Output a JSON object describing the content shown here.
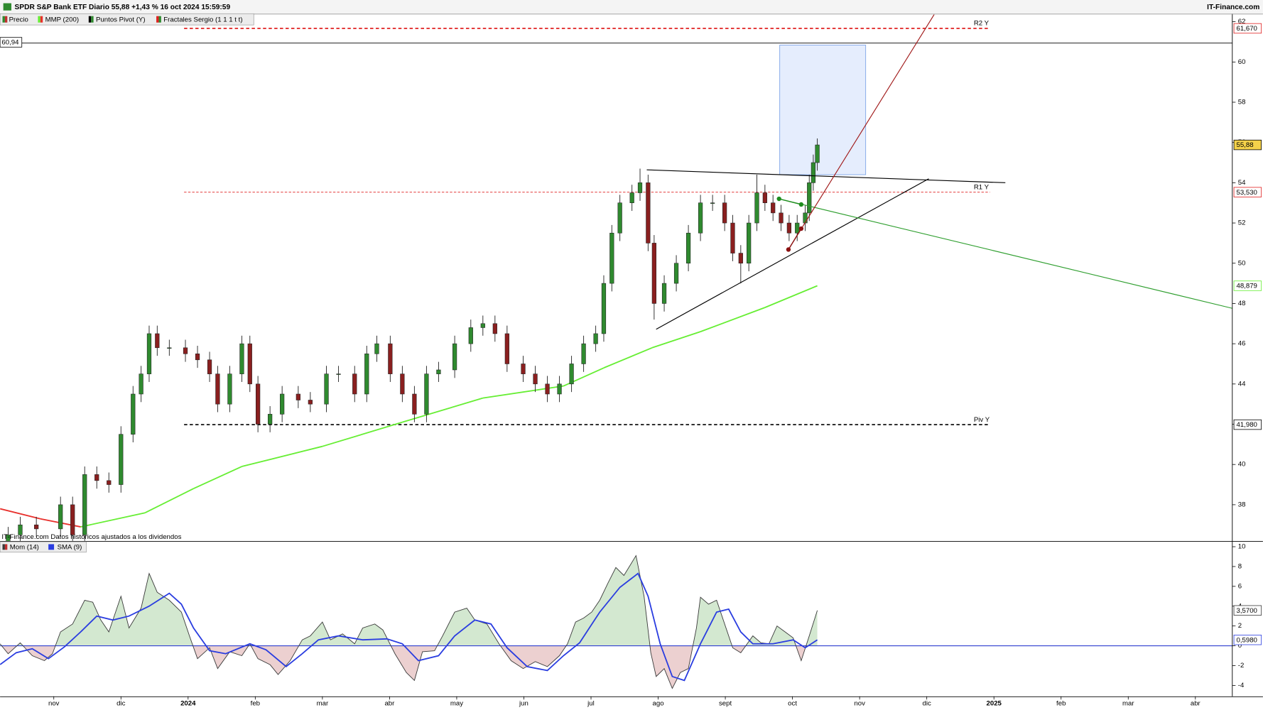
{
  "header": {
    "title": "SPDR S&P Bank ETF Diario 55,88 +1,43 % 16 oct 2024 15:59:59",
    "brand": "IT-Finance.com"
  },
  "chart_data": [
    {
      "type": "candlestick",
      "name": "Precio",
      "up_color": "#2f8a2f",
      "down_color": "#8a1f1f",
      "x": [
        -0.68,
        -0.5,
        -0.26,
        0.1,
        0.28,
        0.46,
        0.64,
        0.82,
        1.0,
        1.18,
        1.3,
        1.42,
        1.54,
        1.72,
        1.96,
        2.14,
        2.32,
        2.44,
        2.62,
        2.8,
        2.92,
        3.04,
        3.22,
        3.4,
        3.64,
        3.82,
        4.06,
        4.24,
        4.48,
        4.66,
        4.81,
        5.01,
        5.19,
        5.37,
        5.55,
        5.73,
        5.97,
        6.21,
        6.39,
        6.57,
        6.75,
        6.99,
        7.17,
        7.35,
        7.53,
        7.71,
        7.89,
        8.07,
        8.19,
        8.31,
        8.43,
        8.61,
        8.73,
        8.85,
        8.94,
        9.09,
        9.27,
        9.45,
        9.63,
        9.81,
        9.99,
        10.11,
        10.23,
        10.35,
        10.47,
        10.59,
        10.71,
        10.83,
        10.95,
        11.07,
        11.19,
        11.25,
        11.31,
        11.37
      ],
      "open": [
        36,
        36.5,
        37,
        36.8,
        38,
        36.5,
        39.5,
        39.2,
        39,
        41.5,
        43.5,
        44.5,
        46.5,
        45.8,
        45.8,
        45.5,
        45.2,
        44.5,
        43,
        44.5,
        46,
        44,
        42,
        42.5,
        43.5,
        43.2,
        43,
        44.5,
        44.5,
        43.5,
        45.5,
        46,
        44.5,
        43.5,
        42.5,
        44.5,
        44.7,
        46,
        46.8,
        47,
        46.5,
        45,
        44.5,
        44,
        43.5,
        44,
        45,
        46,
        46.5,
        49,
        51.5,
        53,
        53.5,
        54,
        51,
        48,
        49,
        50,
        51.5,
        53,
        53,
        52,
        50.5,
        50,
        52,
        53.5,
        53,
        52.5,
        52,
        51.5,
        52,
        52.5,
        54,
        55
      ],
      "high": [
        36.9,
        37.4,
        37.4,
        38.4,
        38.4,
        39.9,
        39.9,
        39.6,
        41.9,
        43.9,
        44.9,
        46.9,
        46.9,
        46.2,
        46.2,
        45.9,
        45.6,
        44.9,
        44.9,
        46.4,
        46.4,
        44.4,
        42.9,
        43.9,
        43.9,
        43.6,
        44.9,
        44.9,
        44.9,
        45.9,
        46.4,
        46.4,
        44.9,
        43.9,
        44.9,
        45.1,
        46.4,
        47.2,
        47.4,
        47.4,
        46.9,
        45.4,
        44.9,
        44.4,
        44.4,
        45.4,
        46.4,
        46.9,
        49.4,
        51.9,
        53.4,
        53.9,
        54.7,
        54.4,
        51.4,
        49.4,
        50.4,
        51.9,
        53.4,
        53.4,
        53.4,
        52.4,
        50.9,
        52.4,
        54.4,
        53.9,
        53.4,
        52.9,
        52.4,
        52.4,
        52.9,
        54.4,
        55.4,
        56.2
      ],
      "low": [
        35.6,
        36.1,
        36.4,
        36.4,
        36.1,
        36.1,
        38.8,
        38.6,
        38.6,
        41.1,
        43.1,
        44.1,
        45.4,
        45.4,
        45.1,
        44.8,
        44.1,
        42.6,
        42.6,
        44.1,
        43.6,
        41.6,
        41.6,
        42.1,
        42.8,
        42.6,
        42.6,
        44.1,
        43.1,
        43.1,
        45.1,
        44.1,
        43.1,
        42.1,
        42.1,
        44.1,
        44.3,
        45.6,
        46.4,
        46.1,
        44.6,
        44.1,
        43.6,
        43.1,
        43.1,
        43.6,
        44.6,
        45.6,
        46.1,
        48.6,
        51.1,
        52.6,
        53.1,
        50.6,
        47.2,
        47.6,
        48.6,
        49.6,
        51.1,
        52.6,
        51.6,
        50.1,
        49.0,
        49.6,
        51.6,
        52.6,
        52.1,
        51.6,
        51.1,
        51.1,
        51.6,
        52.1,
        53.6,
        54.6
      ],
      "close": [
        36.5,
        37,
        36.8,
        38,
        36.5,
        39.5,
        39.2,
        39,
        41.5,
        43.5,
        44.5,
        46.5,
        45.8,
        45.8,
        45.5,
        45.2,
        44.5,
        43,
        44.5,
        46,
        44,
        42,
        42.5,
        43.5,
        43.2,
        43,
        44.5,
        44.5,
        43.5,
        45.5,
        46,
        44.5,
        43.5,
        42.5,
        44.5,
        44.7,
        46,
        46.8,
        47,
        46.5,
        45,
        44.5,
        44,
        43.5,
        44,
        45,
        46,
        46.5,
        49,
        51.5,
        53,
        53.5,
        54,
        51,
        48,
        49,
        50,
        51.5,
        53,
        53,
        52,
        50.5,
        50,
        52,
        53.5,
        53,
        52.5,
        52,
        51.5,
        52,
        52.5,
        54,
        55,
        55.88
      ],
      "last_close_label": "55,88",
      "overlays": [
        {
          "name": "MMP (200)",
          "color": "#66ee33",
          "color_below": "#e8302c",
          "x": [
            -0.8,
            -0.2,
            0.4,
            1.36,
            2.08,
            2.8,
            4.0,
            5.19,
            6.39,
            7.59,
            8.19,
            8.91,
            9.63,
            10.59,
            11.37
          ],
          "values": [
            37.8,
            37.3,
            36.9,
            37.6,
            38.8,
            39.9,
            40.9,
            42.1,
            43.3,
            43.9,
            44.8,
            45.8,
            46.6,
            47.8,
            48.879
          ],
          "last_label": "48,879"
        }
      ],
      "pivots": {
        "name": "Puntos Pivot (Y)",
        "levels": [
          {
            "name": "R2 Y",
            "value": 61.67,
            "label": "61,670",
            "color": "#e02020",
            "x": [
              1.94,
              13.94
            ]
          },
          {
            "name": "R1 Y",
            "value": 53.53,
            "label": "53,530",
            "color": "#e02020",
            "x": [
              1.94,
              13.94
            ]
          },
          {
            "name": "Piv Y",
            "value": 41.98,
            "label": "41,980",
            "color": "#000000",
            "x": [
              1.94,
              13.94
            ]
          }
        ]
      },
      "fractals": {
        "name": "Fractales Sergio (1 1 1 t t)",
        "up": {
          "color": "#1e8c1e",
          "x": [
            10.8,
            11.13
          ],
          "values": [
            53.2,
            52.92
          ]
        },
        "down": {
          "color": "#8a1010",
          "x": [
            10.94,
            11.13
          ],
          "values": [
            50.68,
            51.72
          ]
        }
      },
      "drawings": [
        {
          "color": "#000000",
          "x": [
            8.83,
            14.17
          ],
          "values": [
            54.64,
            54.0
          ]
        },
        {
          "color": "#000000",
          "x": [
            8.97,
            13.03
          ],
          "values": [
            46.72,
            54.2
          ]
        },
        {
          "color": "#2e9e2e",
          "x": [
            10.8,
            17.55
          ],
          "values": [
            53.2,
            47.76
          ]
        },
        {
          "color": "#a01818",
          "x": [
            10.94,
            13.11
          ],
          "values": [
            50.68,
            62.36
          ]
        }
      ],
      "box": {
        "x": [
          10.81,
          12.09
        ],
        "values": [
          54.4,
          60.84
        ],
        "color": "#7fa6e8"
      },
      "cursor": {
        "value": 60.94,
        "label": "60,94"
      },
      "xlim": [
        -0.8,
        17.55
      ],
      "ylim": [
        36.2,
        62.36
      ],
      "yticks": [
        38,
        40,
        42,
        44,
        46,
        48,
        50,
        52,
        54,
        56,
        58,
        60,
        62
      ]
    },
    {
      "type": "area",
      "note": "IT-Finance.com Datos históricos ajustados a los dividendos",
      "series": [
        {
          "name": "Mom (14)",
          "color": "#3a3a3a",
          "fill_up": "#d3e8d0",
          "fill_down": "#ecd0d0",
          "x": [
            -0.8,
            -0.68,
            -0.5,
            -0.32,
            -0.14,
            -0.02,
            0.1,
            0.28,
            0.46,
            0.58,
            0.7,
            0.82,
            1.0,
            1.12,
            1.3,
            1.42,
            1.54,
            1.72,
            1.9,
            2.02,
            2.14,
            2.32,
            2.44,
            2.62,
            2.8,
            2.92,
            3.04,
            3.22,
            3.34,
            3.52,
            3.7,
            3.82,
            4.0,
            4.12,
            4.3,
            4.48,
            4.6,
            4.78,
            4.9,
            5.08,
            5.25,
            5.37,
            5.49,
            5.67,
            5.79,
            5.97,
            6.15,
            6.27,
            6.45,
            6.63,
            6.81,
            6.99,
            7.17,
            7.35,
            7.53,
            7.65,
            7.77,
            7.89,
            8.01,
            8.13,
            8.25,
            8.37,
            8.49,
            8.67,
            8.79,
            8.89,
            8.97,
            9.09,
            9.21,
            9.33,
            9.45,
            9.57,
            9.63,
            9.75,
            9.87,
            9.99,
            10.11,
            10.23,
            10.41,
            10.53,
            10.65,
            10.77,
            10.89,
            11.01,
            11.13,
            11.25,
            11.37
          ],
          "values": [
            0.2,
            -0.8,
            0.3,
            -1,
            -1.5,
            -0.8,
            1.4,
            2.2,
            4.6,
            4.4,
            2.6,
            1.4,
            5,
            1.8,
            3.8,
            7.3,
            5.4,
            4.6,
            3.4,
            1,
            -1.3,
            -0.2,
            -2.3,
            -0.6,
            -1,
            0.2,
            -1.3,
            -1.9,
            -2.9,
            -1.5,
            0.6,
            1,
            2.4,
            0.6,
            1.2,
            0.2,
            1.8,
            2.2,
            1.6,
            -0.8,
            -2.7,
            -3.5,
            -0.6,
            -0.5,
            1,
            3.4,
            3.8,
            2.6,
            2.2,
            0.2,
            -1.5,
            -2.3,
            -1.6,
            -2.1,
            -1,
            0.2,
            2.4,
            2.8,
            3.4,
            4.6,
            6.3,
            7.9,
            7.1,
            9.1,
            5,
            -0.7,
            -3.1,
            -2.3,
            -4.3,
            -2.7,
            -2.3,
            1.8,
            4.9,
            4.2,
            4.6,
            2.2,
            -0.2,
            -0.7,
            1,
            0.3,
            0.2,
            2,
            1.4,
            0.8,
            -1.5,
            1,
            3.57
          ],
          "last_label": "3,5700"
        },
        {
          "name": "SMA (9)",
          "color": "#2a3de0",
          "x": [
            -0.8,
            -0.56,
            -0.32,
            -0.08,
            0.16,
            0.4,
            0.64,
            0.88,
            1.12,
            1.42,
            1.72,
            1.9,
            2.08,
            2.32,
            2.56,
            2.92,
            3.16,
            3.46,
            3.7,
            3.94,
            4.24,
            4.6,
            4.96,
            5.19,
            5.43,
            5.73,
            5.97,
            6.27,
            6.51,
            6.75,
            7.05,
            7.35,
            7.59,
            7.83,
            8.13,
            8.43,
            8.7,
            8.85,
            9.03,
            9.21,
            9.39,
            9.63,
            9.87,
            10.05,
            10.23,
            10.41,
            10.71,
            11.01,
            11.19,
            11.37
          ],
          "values": [
            -1.9,
            -0.7,
            -0.3,
            -1.3,
            -0.1,
            1.4,
            3,
            2.6,
            3,
            4,
            5.3,
            4.2,
            1.8,
            -0.5,
            -0.8,
            0.2,
            -0.4,
            -2.1,
            -0.8,
            0.6,
            1,
            0.6,
            0.7,
            0.2,
            -1.5,
            -1,
            1,
            2.6,
            2.2,
            -0.2,
            -2.1,
            -2.5,
            -1,
            0.3,
            3.4,
            5.9,
            7.3,
            5,
            0.2,
            -3.1,
            -3.5,
            0.2,
            3.4,
            3.7,
            1.4,
            0.2,
            0.2,
            0.6,
            -0.2,
            0.598
          ],
          "last_label": "0,5980"
        }
      ],
      "zero_line": {
        "value": 0,
        "color": "#3040d0"
      },
      "xlim": [
        -0.8,
        17.55
      ],
      "ylim": [
        -5.1,
        10.5
      ],
      "yticks": [
        -4,
        -2,
        0,
        2,
        4,
        6,
        8,
        10
      ],
      "xticks": [
        {
          "value": 0,
          "label": "nov"
        },
        {
          "value": 1,
          "label": "dic"
        },
        {
          "value": 2,
          "label": "2024"
        },
        {
          "value": 3,
          "label": "feb"
        },
        {
          "value": 4,
          "label": "mar"
        },
        {
          "value": 5,
          "label": "abr"
        },
        {
          "value": 6,
          "label": "may"
        },
        {
          "value": 7,
          "label": "jun"
        },
        {
          "value": 8,
          "label": "jul"
        },
        {
          "value": 9,
          "label": "ago"
        },
        {
          "value": 10,
          "label": "sept"
        },
        {
          "value": 11,
          "label": "oct"
        },
        {
          "value": 12,
          "label": "nov"
        },
        {
          "value": 13,
          "label": "dic"
        },
        {
          "value": 14,
          "label": "2025"
        },
        {
          "value": 15,
          "label": "feb"
        },
        {
          "value": 16,
          "label": "mar"
        },
        {
          "value": 17,
          "label": "abr"
        }
      ]
    }
  ]
}
